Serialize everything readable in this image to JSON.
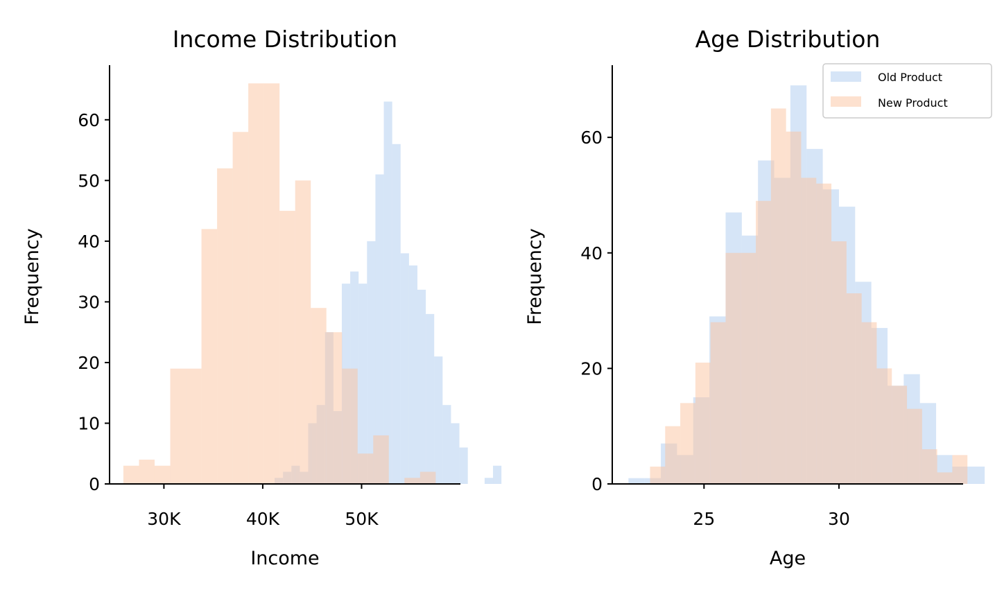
{
  "colors": {
    "old_product": "#aecbf0",
    "new_product": "#fcc49f"
  },
  "chart_data": [
    {
      "type": "bar",
      "title": "Income Distribution",
      "xlabel": "Income",
      "ylabel": "Frequency",
      "xlim": [
        24500,
        60000
      ],
      "ylim": [
        0,
        69
      ],
      "xticks": [
        {
          "value": 30000,
          "label": "30K"
        },
        {
          "value": 40000,
          "label": "40K"
        },
        {
          "value": 50000,
          "label": "50K"
        }
      ],
      "yticks": [
        {
          "value": 0,
          "label": "0"
        },
        {
          "value": 10,
          "label": "10"
        },
        {
          "value": 20,
          "label": "20"
        },
        {
          "value": 30,
          "label": "30"
        },
        {
          "value": 40,
          "label": "40"
        },
        {
          "value": 50,
          "label": "50"
        },
        {
          "value": 60,
          "label": "60"
        }
      ],
      "series": [
        {
          "name": "Old Product",
          "color_key": "old_product",
          "bin_start": 41200,
          "bin_width": 850,
          "values": [
            1,
            2,
            3,
            2,
            10,
            13,
            25,
            12,
            33,
            35,
            33,
            40,
            51,
            63,
            56,
            38,
            36,
            32,
            28,
            21,
            13,
            10,
            6,
            0,
            0,
            1,
            3
          ]
        },
        {
          "name": "New Product",
          "color_key": "new_product",
          "bin_start": 25900,
          "bin_width": 1580,
          "values": [
            3,
            4,
            3,
            19,
            19,
            42,
            52,
            58,
            66,
            66,
            45,
            50,
            29,
            25,
            19,
            5,
            8,
            0,
            1,
            2
          ]
        }
      ]
    },
    {
      "type": "bar",
      "title": "Age Distribution",
      "xlabel": "Age",
      "ylabel": "Frequency",
      "xlim": [
        21.6,
        34.6
      ],
      "ylim": [
        0,
        72.5
      ],
      "xticks": [
        {
          "value": 25,
          "label": "25"
        },
        {
          "value": 30,
          "label": "30"
        }
      ],
      "yticks": [
        {
          "value": 0,
          "label": "0"
        },
        {
          "value": 20,
          "label": "20"
        },
        {
          "value": 40,
          "label": "40"
        },
        {
          "value": 60,
          "label": "60"
        }
      ],
      "legend": {
        "position": "top-right",
        "entries": [
          "Old Product",
          "New Product"
        ]
      },
      "series": [
        {
          "name": "Old Product",
          "color_key": "old_product",
          "bin_start": 22.2,
          "bin_width": 0.6,
          "values": [
            1,
            1,
            7,
            5,
            15,
            29,
            47,
            43,
            56,
            53,
            69,
            58,
            51,
            48,
            35,
            27,
            17,
            19,
            14,
            5,
            3,
            3
          ]
        },
        {
          "name": "New Product",
          "color_key": "new_product",
          "bin_start": 23.0,
          "bin_width": 0.56,
          "values": [
            3,
            10,
            14,
            21,
            28,
            40,
            40,
            49,
            65,
            61,
            53,
            52,
            42,
            33,
            28,
            20,
            17,
            13,
            6,
            2,
            5
          ]
        }
      ]
    }
  ]
}
